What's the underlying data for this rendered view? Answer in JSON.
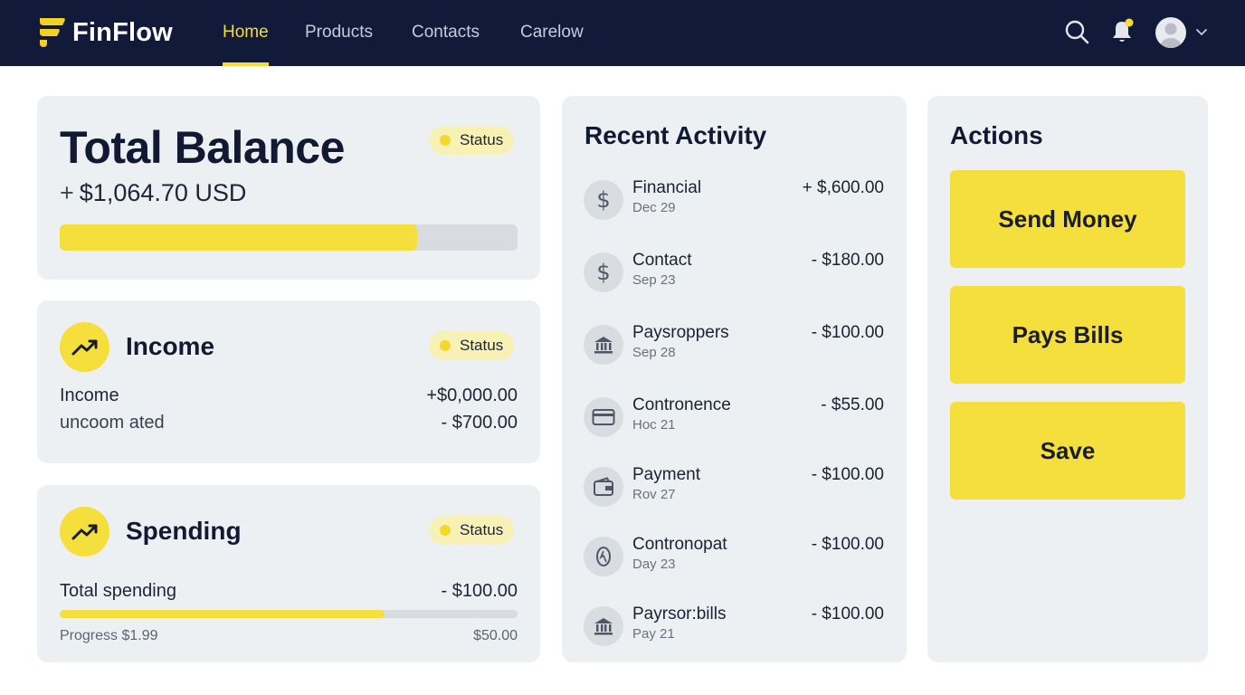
{
  "app": {
    "name": "FinFlow"
  },
  "nav": {
    "items": [
      {
        "label": "Home",
        "active": true
      },
      {
        "label": "Products",
        "active": false
      },
      {
        "label": "Contacts",
        "active": false
      },
      {
        "label": "Carelow",
        "active": false
      }
    ],
    "icons": [
      "search-icon",
      "bell-icon",
      "avatar",
      "chevron-down-icon"
    ],
    "notification_dot_color": "#f3dd3a"
  },
  "balance": {
    "title": "Total Balance",
    "status": "Status",
    "sign": "+",
    "amount": "$1,064.70 USD",
    "progress_fraction": 0.78
  },
  "income": {
    "title": "Income",
    "status": "Status",
    "rows": [
      {
        "label": "Income",
        "value": "+$0,000.00"
      },
      {
        "label": "uncoom ated",
        "value": "- $700.00"
      }
    ]
  },
  "spending": {
    "title": "Spending",
    "status": "Status",
    "total_label": "Total spending",
    "total_value": "- $100.00",
    "progress_fraction": 0.71,
    "progress_label": "Progress $1.99",
    "progress_max": "$50.00"
  },
  "activity": {
    "title": "Recent Activity",
    "items": [
      {
        "icon": "dollar-icon",
        "name": "Financial",
        "date": "Dec 29",
        "amount": "+ $,600.00"
      },
      {
        "icon": "dollar-icon",
        "name": "Contact",
        "date": "Sep 23",
        "amount": "- $180.00"
      },
      {
        "icon": "bank-icon",
        "name": "Paysroppers",
        "date": "Sep 28",
        "amount": "- $100.00"
      },
      {
        "icon": "card-icon",
        "name": "Contronence",
        "date": "Hoc 21",
        "amount": "- $55.00"
      },
      {
        "icon": "wallet-icon",
        "name": "Payment",
        "date": "Rov 27",
        "amount": "- $100.00"
      },
      {
        "icon": "coin-icon",
        "name": "Contronopat",
        "date": "Day 23",
        "amount": "- $100.00"
      },
      {
        "icon": "bank-icon",
        "name": "Payrsor:bills",
        "date": "Pay 21",
        "amount": "- $100.00"
      }
    ]
  },
  "actions": {
    "title": "Actions",
    "buttons": [
      "Send Money",
      "Pays Bills",
      "Save"
    ]
  },
  "colors": {
    "header_bg": "#121a3a",
    "accent_yellow": "#f5df3c",
    "card_bg": "#edf0f2",
    "status_pill_bg": "#f7f1b5"
  }
}
